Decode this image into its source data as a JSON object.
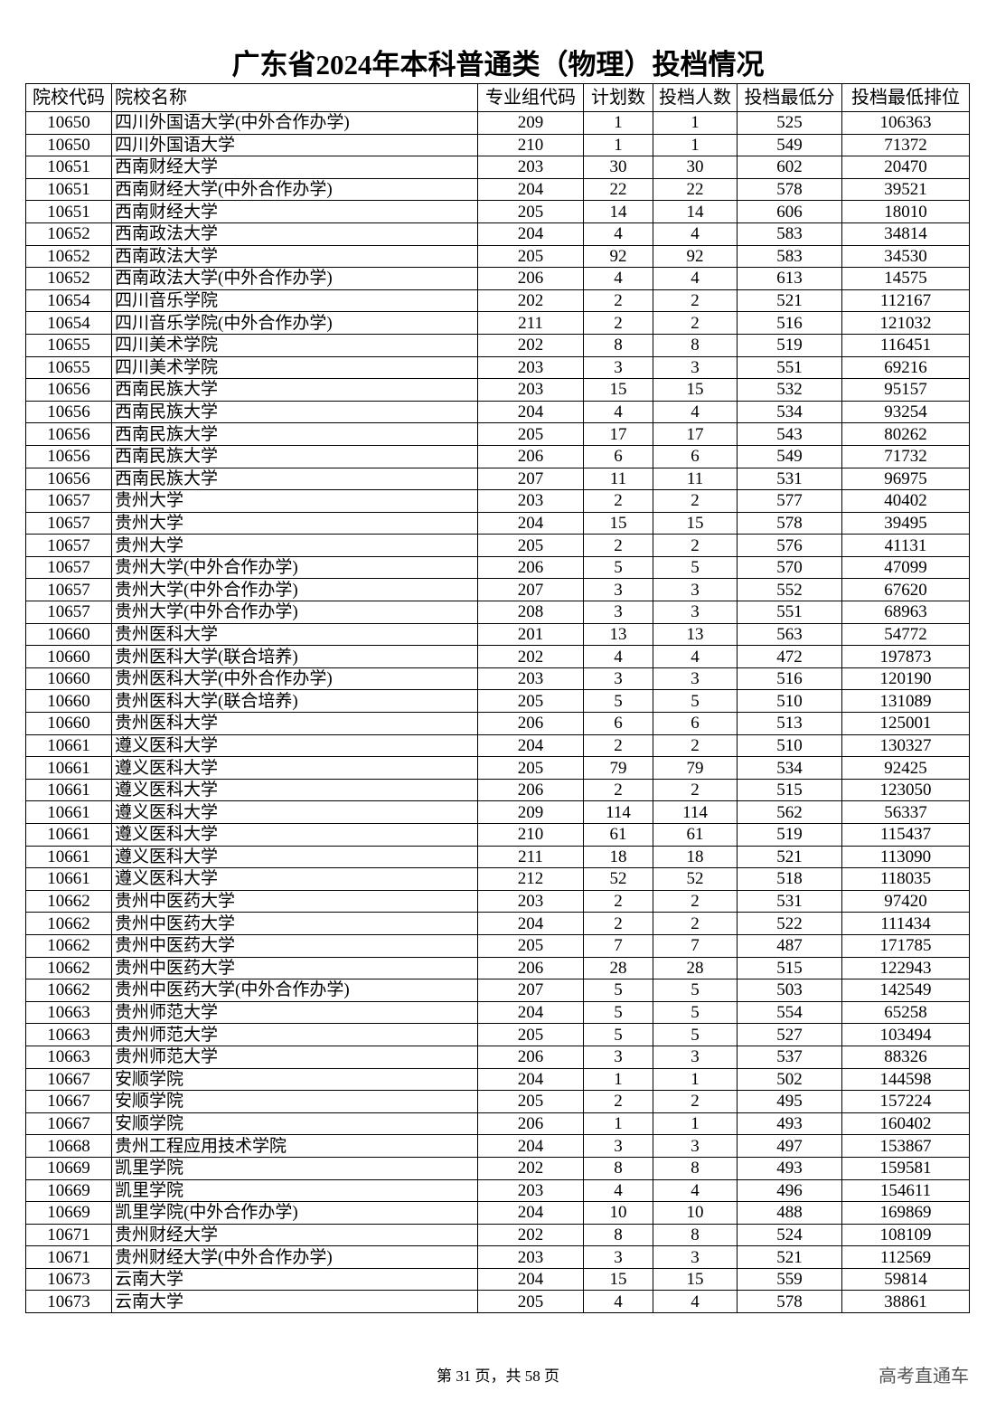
{
  "title": "广东省2024年本科普通类（物理）投档情况",
  "columns": [
    "院校代码",
    "院校名称",
    "专业组代码",
    "计划数",
    "投档人数",
    "投档最低分",
    "投档最低排位"
  ],
  "rows": [
    [
      "10650",
      "四川外国语大学(中外合作办学)",
      "209",
      "1",
      "1",
      "525",
      "106363"
    ],
    [
      "10650",
      "四川外国语大学",
      "210",
      "1",
      "1",
      "549",
      "71372"
    ],
    [
      "10651",
      "西南财经大学",
      "203",
      "30",
      "30",
      "602",
      "20470"
    ],
    [
      "10651",
      "西南财经大学(中外合作办学)",
      "204",
      "22",
      "22",
      "578",
      "39521"
    ],
    [
      "10651",
      "西南财经大学",
      "205",
      "14",
      "14",
      "606",
      "18010"
    ],
    [
      "10652",
      "西南政法大学",
      "204",
      "4",
      "4",
      "583",
      "34814"
    ],
    [
      "10652",
      "西南政法大学",
      "205",
      "92",
      "92",
      "583",
      "34530"
    ],
    [
      "10652",
      "西南政法大学(中外合作办学)",
      "206",
      "4",
      "4",
      "613",
      "14575"
    ],
    [
      "10654",
      "四川音乐学院",
      "202",
      "2",
      "2",
      "521",
      "112167"
    ],
    [
      "10654",
      "四川音乐学院(中外合作办学)",
      "211",
      "2",
      "2",
      "516",
      "121032"
    ],
    [
      "10655",
      "四川美术学院",
      "202",
      "8",
      "8",
      "519",
      "116451"
    ],
    [
      "10655",
      "四川美术学院",
      "203",
      "3",
      "3",
      "551",
      "69216"
    ],
    [
      "10656",
      "西南民族大学",
      "203",
      "15",
      "15",
      "532",
      "95157"
    ],
    [
      "10656",
      "西南民族大学",
      "204",
      "4",
      "4",
      "534",
      "93254"
    ],
    [
      "10656",
      "西南民族大学",
      "205",
      "17",
      "17",
      "543",
      "80262"
    ],
    [
      "10656",
      "西南民族大学",
      "206",
      "6",
      "6",
      "549",
      "71732"
    ],
    [
      "10656",
      "西南民族大学",
      "207",
      "11",
      "11",
      "531",
      "96975"
    ],
    [
      "10657",
      "贵州大学",
      "203",
      "2",
      "2",
      "577",
      "40402"
    ],
    [
      "10657",
      "贵州大学",
      "204",
      "15",
      "15",
      "578",
      "39495"
    ],
    [
      "10657",
      "贵州大学",
      "205",
      "2",
      "2",
      "576",
      "41131"
    ],
    [
      "10657",
      "贵州大学(中外合作办学)",
      "206",
      "5",
      "5",
      "570",
      "47099"
    ],
    [
      "10657",
      "贵州大学(中外合作办学)",
      "207",
      "3",
      "3",
      "552",
      "67620"
    ],
    [
      "10657",
      "贵州大学(中外合作办学)",
      "208",
      "3",
      "3",
      "551",
      "68963"
    ],
    [
      "10660",
      "贵州医科大学",
      "201",
      "13",
      "13",
      "563",
      "54772"
    ],
    [
      "10660",
      "贵州医科大学(联合培养)",
      "202",
      "4",
      "4",
      "472",
      "197873"
    ],
    [
      "10660",
      "贵州医科大学(中外合作办学)",
      "203",
      "3",
      "3",
      "516",
      "120190"
    ],
    [
      "10660",
      "贵州医科大学(联合培养)",
      "205",
      "5",
      "5",
      "510",
      "131089"
    ],
    [
      "10660",
      "贵州医科大学",
      "206",
      "6",
      "6",
      "513",
      "125001"
    ],
    [
      "10661",
      "遵义医科大学",
      "204",
      "2",
      "2",
      "510",
      "130327"
    ],
    [
      "10661",
      "遵义医科大学",
      "205",
      "79",
      "79",
      "534",
      "92425"
    ],
    [
      "10661",
      "遵义医科大学",
      "206",
      "2",
      "2",
      "515",
      "123050"
    ],
    [
      "10661",
      "遵义医科大学",
      "209",
      "114",
      "114",
      "562",
      "56337"
    ],
    [
      "10661",
      "遵义医科大学",
      "210",
      "61",
      "61",
      "519",
      "115437"
    ],
    [
      "10661",
      "遵义医科大学",
      "211",
      "18",
      "18",
      "521",
      "113090"
    ],
    [
      "10661",
      "遵义医科大学",
      "212",
      "52",
      "52",
      "518",
      "118035"
    ],
    [
      "10662",
      "贵州中医药大学",
      "203",
      "2",
      "2",
      "531",
      "97420"
    ],
    [
      "10662",
      "贵州中医药大学",
      "204",
      "2",
      "2",
      "522",
      "111434"
    ],
    [
      "10662",
      "贵州中医药大学",
      "205",
      "7",
      "7",
      "487",
      "171785"
    ],
    [
      "10662",
      "贵州中医药大学",
      "206",
      "28",
      "28",
      "515",
      "122943"
    ],
    [
      "10662",
      "贵州中医药大学(中外合作办学)",
      "207",
      "5",
      "5",
      "503",
      "142549"
    ],
    [
      "10663",
      "贵州师范大学",
      "204",
      "5",
      "5",
      "554",
      "65258"
    ],
    [
      "10663",
      "贵州师范大学",
      "205",
      "5",
      "5",
      "527",
      "103494"
    ],
    [
      "10663",
      "贵州师范大学",
      "206",
      "3",
      "3",
      "537",
      "88326"
    ],
    [
      "10667",
      "安顺学院",
      "204",
      "1",
      "1",
      "502",
      "144598"
    ],
    [
      "10667",
      "安顺学院",
      "205",
      "2",
      "2",
      "495",
      "157224"
    ],
    [
      "10667",
      "安顺学院",
      "206",
      "1",
      "1",
      "493",
      "160402"
    ],
    [
      "10668",
      "贵州工程应用技术学院",
      "204",
      "3",
      "3",
      "497",
      "153867"
    ],
    [
      "10669",
      "凯里学院",
      "202",
      "8",
      "8",
      "493",
      "159581"
    ],
    [
      "10669",
      "凯里学院",
      "203",
      "4",
      "4",
      "496",
      "154611"
    ],
    [
      "10669",
      "凯里学院(中外合作办学)",
      "204",
      "10",
      "10",
      "488",
      "169869"
    ],
    [
      "10671",
      "贵州财经大学",
      "202",
      "8",
      "8",
      "524",
      "108109"
    ],
    [
      "10671",
      "贵州财经大学(中外合作办学)",
      "203",
      "3",
      "3",
      "521",
      "112569"
    ],
    [
      "10673",
      "云南大学",
      "204",
      "15",
      "15",
      "559",
      "59814"
    ],
    [
      "10673",
      "云南大学",
      "205",
      "4",
      "4",
      "578",
      "38861"
    ]
  ],
  "footer": {
    "page": "第 31 页，共 58 页",
    "brand": "高考直通车"
  }
}
